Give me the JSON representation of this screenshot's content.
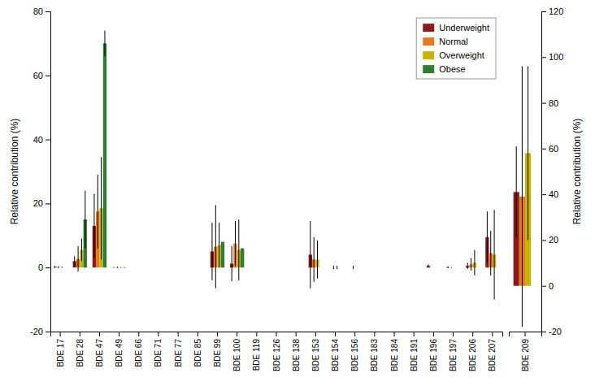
{
  "chart_data": [
    {
      "type": "bar",
      "categories": [
        "BDE 17",
        "BDE 28",
        "BDE 47",
        "BDE 49",
        "BDE 66",
        "BDE 71",
        "BDE 77",
        "BDE 85",
        "BDE 99",
        "BDE 100",
        "BDE 119",
        "BDE 126",
        "BDE 138",
        "BDE 153",
        "BDE 154",
        "BDE 156",
        "BDE 183",
        "BDE 184",
        "BDE 191",
        "BDE 196",
        "BDE 197",
        "BDE 206",
        "BDE 207"
      ],
      "series": [
        {
          "name": "Underweight",
          "color": "#8B1A1A",
          "values": [
            0.2,
            2.0,
            13.0,
            0.05,
            0.0,
            0.0,
            0.0,
            0.0,
            5.0,
            1.2,
            0.0,
            0.0,
            0.0,
            4.0,
            0.0,
            0.0,
            0.0,
            0.0,
            0.0,
            0.5,
            0.1,
            0.5,
            9.5
          ],
          "errors": [
            0.3,
            1.5,
            10.0,
            0.1,
            0.0,
            0.0,
            0.0,
            0.0,
            9.0,
            5.5,
            0.0,
            0.0,
            0.0,
            10.5,
            0.0,
            0.0,
            0.0,
            0.0,
            0.0,
            0.5,
            0.3,
            1.0,
            8.0
          ]
        },
        {
          "name": "Normal",
          "color": "#E87820",
          "values": [
            0.1,
            2.7,
            17.5,
            0.1,
            0.0,
            0.0,
            0.0,
            0.0,
            6.5,
            7.5,
            0.0,
            0.0,
            0.0,
            2.5,
            0.0,
            0.0,
            0.0,
            0.0,
            0.0,
            0.0,
            0.05,
            1.0,
            4.5
          ],
          "errors": [
            0.3,
            4.0,
            11.5,
            0.2,
            0.0,
            0.0,
            0.0,
            0.0,
            13.0,
            7.0,
            0.0,
            0.0,
            0.0,
            7.0,
            0.5,
            0.5,
            0.0,
            0.0,
            0.0,
            0.0,
            0.1,
            2.0,
            7.0
          ]
        },
        {
          "name": "Overweight",
          "color": "#C8B400",
          "values": [
            0.1,
            5.5,
            18.5,
            0.05,
            0.0,
            0.0,
            0.0,
            0.0,
            7.0,
            5.5,
            0.0,
            0.0,
            0.0,
            2.5,
            0.0,
            0.0,
            0.0,
            0.0,
            0.0,
            0.0,
            0.0,
            1.5,
            4.0
          ],
          "errors": [
            0.15,
            3.5,
            16.0,
            0.1,
            0.0,
            0.0,
            0.0,
            0.0,
            7.0,
            9.5,
            0.0,
            0.0,
            0.0,
            6.0,
            0.5,
            0.0,
            0.0,
            0.0,
            0.0,
            0.0,
            0.0,
            4.0,
            14.0
          ]
        },
        {
          "name": "Obese",
          "color": "#2E7D32",
          "values": [
            0.0,
            15.0,
            70.0,
            0.05,
            0.0,
            0.0,
            0.0,
            0.0,
            8.0,
            6.0,
            0.0,
            0.0,
            0.0,
            0.0,
            0.0,
            0.0,
            0.0,
            0.0,
            0.0,
            0.0,
            0.0,
            0.0,
            0.0
          ],
          "errors": [
            0.0,
            9.0,
            4.0,
            0.1,
            0.0,
            0.0,
            0.0,
            0.0,
            0.0,
            0.0,
            0.0,
            0.0,
            0.0,
            0.0,
            0.0,
            0.0,
            0.0,
            0.0,
            0.0,
            0.0,
            0.0,
            0.0,
            0.0
          ]
        }
      ],
      "ylabel": "Relative contribution (%)",
      "ylim": [
        -20,
        80
      ],
      "yticks": [
        -20,
        0,
        20,
        40,
        60,
        80
      ],
      "grid": false,
      "legend": "upper right"
    },
    {
      "type": "bar",
      "categories": [
        "BDE 209"
      ],
      "series": [
        {
          "color": "#8B1A1A",
          "values": [
            41.0
          ],
          "errors": [
            20.0
          ]
        },
        {
          "color": "#E87820",
          "values": [
            39.0
          ],
          "errors": [
            57.0
          ]
        },
        {
          "color": "#C8B400",
          "values": [
            58.0
          ],
          "errors": [
            38.0
          ]
        },
        {
          "color": "#2E7D32",
          "values": [
            0.0
          ],
          "errors": [
            0.0
          ]
        }
      ],
      "ylabel": "Relative contribution (%)",
      "ylim": [
        -20,
        120
      ],
      "yticks": [
        -20,
        0,
        20,
        40,
        60,
        80,
        100,
        120
      ],
      "grid": false
    }
  ]
}
